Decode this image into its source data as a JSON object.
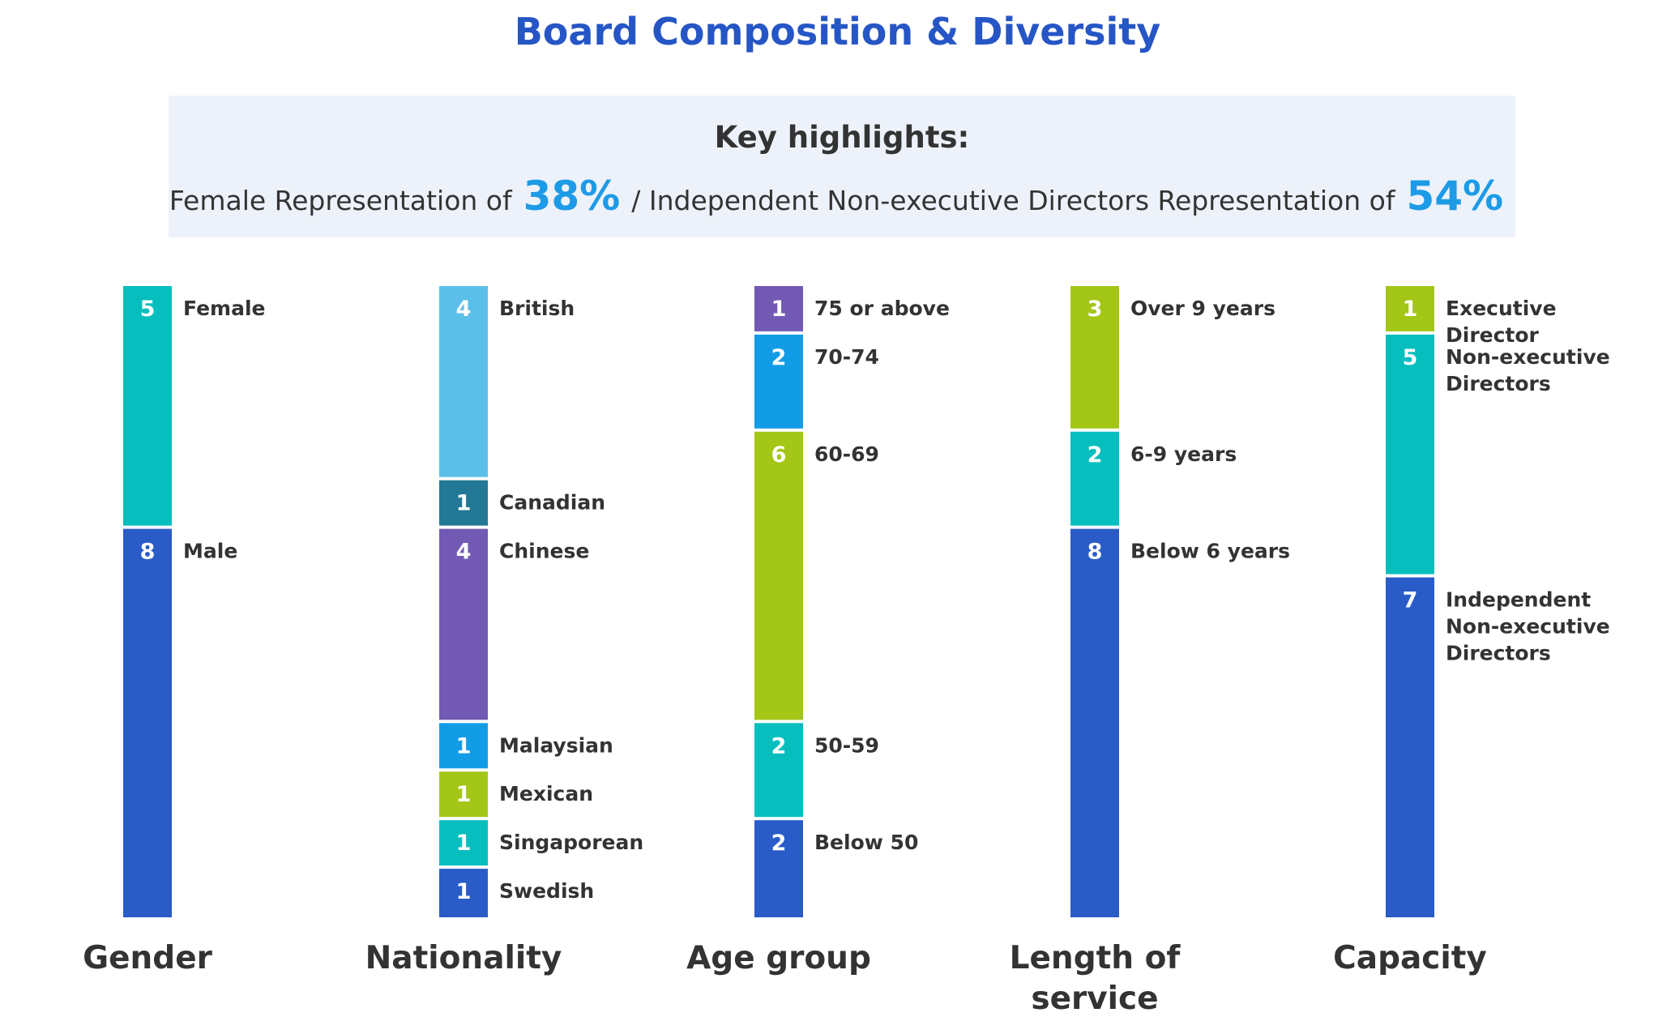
{
  "title": "Board Composition & Diversity",
  "highlights": {
    "heading": "Key highlights:",
    "female_prefix": "Female Representation of",
    "female_pct": "38%",
    "ined_prefix": "/ Independent Non-executive Directors Representation of",
    "ined_pct": "54%"
  },
  "chart_data": {
    "type": "bar",
    "stacked": true,
    "total_per_stack": 13,
    "title": "Board Composition & Diversity",
    "categories": [
      "Gender",
      "Nationality",
      "Age group",
      "Length of service",
      "Capacity"
    ],
    "stacks": [
      {
        "category": "Gender",
        "title_lines": [
          "Gender"
        ],
        "segments": [
          {
            "label": "Female",
            "value": 5,
            "color": "#06bebd"
          },
          {
            "label": "Male",
            "value": 8,
            "color": "#2a5cc8"
          }
        ]
      },
      {
        "category": "Nationality",
        "title_lines": [
          "Nationality"
        ],
        "segments": [
          {
            "label": "British",
            "value": 4,
            "color": "#5bbfe9"
          },
          {
            "label": "Canadian",
            "value": 1,
            "color": "#237896"
          },
          {
            "label": "Chinese",
            "value": 4,
            "color": "#7259b4"
          },
          {
            "label": "Malaysian",
            "value": 1,
            "color": "#139ce6"
          },
          {
            "label": "Mexican",
            "value": 1,
            "color": "#a3c617"
          },
          {
            "label": "Singaporean",
            "value": 1,
            "color": "#06bebd"
          },
          {
            "label": "Swedish",
            "value": 1,
            "color": "#2a5cc8"
          }
        ]
      },
      {
        "category": "Age group",
        "title_lines": [
          "Age group"
        ],
        "segments": [
          {
            "label": "75 or above",
            "value": 1,
            "color": "#7259b4"
          },
          {
            "label": "70-74",
            "value": 2,
            "color": "#139ce6"
          },
          {
            "label": "60-69",
            "value": 6,
            "color": "#a3c617"
          },
          {
            "label": "50-59",
            "value": 2,
            "color": "#06bebd"
          },
          {
            "label": "Below 50",
            "value": 2,
            "color": "#2a5cc8"
          }
        ]
      },
      {
        "category": "Length of service",
        "title_lines": [
          "Length of",
          "service"
        ],
        "segments": [
          {
            "label": "Over 9 years",
            "value": 3,
            "color": "#a3c617"
          },
          {
            "label": "6-9 years",
            "value": 2,
            "color": "#06bebd"
          },
          {
            "label": "Below 6 years",
            "value": 8,
            "color": "#2a5cc8"
          }
        ]
      },
      {
        "category": "Capacity",
        "title_lines": [
          "Capacity"
        ],
        "segments": [
          {
            "label": "Executive Director",
            "value": 1,
            "color": "#a3c617"
          },
          {
            "label": "Non-executive Directors",
            "value": 5,
            "color": "#06bebd"
          },
          {
            "label": "Independent Non-executive Directors",
            "value": 7,
            "color": "#2a5cc8"
          }
        ]
      }
    ]
  }
}
